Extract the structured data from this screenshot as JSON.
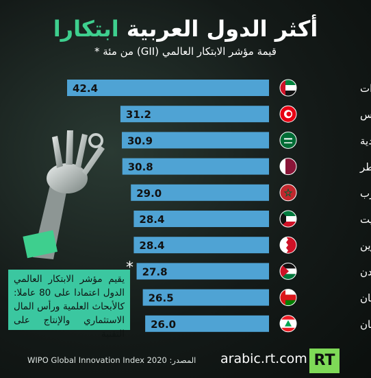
{
  "header": {
    "title_white": "أكثر الدول العربية",
    "title_green": "ابتكارا",
    "subtitle": "قيمة مؤشر الابتكار العالمي (GII) من مئة *"
  },
  "note": {
    "asterisk": "*",
    "text": "يقيم مؤشر الابتكار العالمي الدول اعتمادا على 80 عاملا: كالأبحاث العلمية ورأس المال الاستثماري والإنتاج على التقنية"
  },
  "footer": {
    "source": "المصدر: WIPO Global Innovation Index 2020",
    "site": "arabic.rt.com",
    "logo": "RT"
  },
  "colors": {
    "bar": "#4fa3d4",
    "accent": "#3ecf8e",
    "note_bg": "#3bc7a0"
  },
  "chart_data": {
    "type": "bar",
    "orientation": "horizontal",
    "categories": [
      "الإمارات",
      "تونس",
      "السعودية",
      "قطر",
      "المغرب",
      "الكويت",
      "البحرين",
      "الأردن",
      "سلطنة عمان",
      "لبنان"
    ],
    "flags": [
      "uae-flag",
      "tunisia-flag",
      "saudi-flag",
      "qatar-flag",
      "morocco-flag",
      "kuwait-flag",
      "bahrain-flag",
      "jordan-flag",
      "oman-flag",
      "lebanon-flag"
    ],
    "values": [
      42.4,
      31.2,
      30.9,
      30.8,
      29.0,
      28.4,
      28.4,
      27.8,
      26.5,
      26.0
    ],
    "labels": [
      "42.4",
      "31.2",
      "30.9",
      "30.8",
      "29.0",
      "28.4",
      "28.4",
      "27.8",
      "26.5",
      "26.0"
    ],
    "title": "أكثر الدول العربية ابتكارا",
    "subtitle": "قيمة مؤشر الابتكار العالمي (GII) من مئة *"
  }
}
